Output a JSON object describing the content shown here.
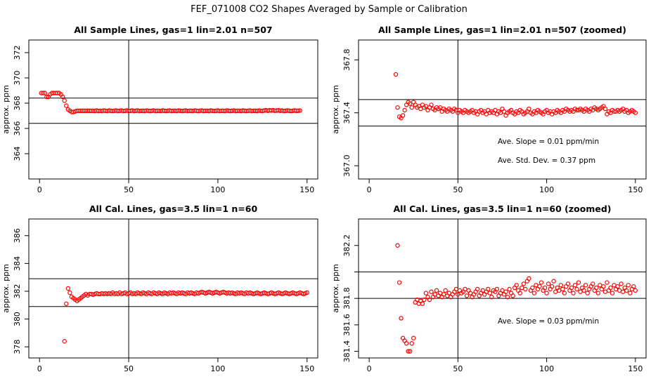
{
  "figure": {
    "title": "FEF_071008  CO2 Shapes Averaged by Sample or Calibration"
  },
  "chart_data": [
    {
      "type": "scatter",
      "title": "All Sample Lines, gas=1 lin=2.01 n=507",
      "xlabel": "",
      "ylabel": "approx. ppm",
      "xlim": [
        -6,
        156
      ],
      "ylim": [
        362,
        373
      ],
      "xticks": [
        0,
        50,
        100,
        150
      ],
      "yticks": [
        364,
        366,
        368,
        370,
        372
      ],
      "marker_color": "#ff0000",
      "vline": 50,
      "hlines": [
        366.4,
        368.4
      ],
      "annotations": [],
      "x_start": 1,
      "x_step": 1,
      "values": [
        368.8,
        368.8,
        368.8,
        368.5,
        368.5,
        368.7,
        368.8,
        368.8,
        368.8,
        368.8,
        368.8,
        368.7,
        368.5,
        368.2,
        367.8,
        367.5,
        367.4,
        367.3,
        367.3,
        367.35,
        367.4,
        367.4,
        367.4,
        367.4,
        367.4,
        367.4,
        367.4,
        367.4,
        367.4,
        367.4,
        367.38,
        367.42,
        367.38,
        367.4,
        367.38,
        367.42,
        367.4,
        367.38,
        367.42,
        367.4,
        367.38,
        367.4,
        367.42,
        367.38,
        367.4,
        367.42,
        367.38,
        367.4,
        367.42,
        367.38,
        367.4,
        367.42,
        367.38,
        367.4,
        367.42,
        367.38,
        367.4,
        367.4,
        367.38,
        367.42,
        367.4,
        367.38,
        367.4,
        367.42,
        367.38,
        367.4,
        367.4,
        367.38,
        367.42,
        367.4,
        367.38,
        367.4,
        367.42,
        367.38,
        367.4,
        367.4,
        367.38,
        367.42,
        367.4,
        367.38,
        367.4,
        367.42,
        367.38,
        367.4,
        367.4,
        367.38,
        367.42,
        367.4,
        367.38,
        367.4,
        367.42,
        367.38,
        367.4,
        367.4,
        367.38,
        367.42,
        367.4,
        367.38,
        367.4,
        367.42,
        367.38,
        367.4,
        367.4,
        367.38,
        367.42,
        367.4,
        367.38,
        367.4,
        367.42,
        367.38,
        367.4,
        367.4,
        367.38,
        367.42,
        367.4,
        367.38,
        367.4,
        367.42,
        367.38,
        367.4,
        367.4,
        367.38,
        367.42,
        367.4,
        367.38,
        367.42,
        367.44,
        367.4,
        367.44,
        367.42,
        367.44,
        367.4,
        367.42,
        367.44,
        367.4,
        367.42,
        367.38,
        367.4,
        367.42,
        367.4,
        367.38,
        367.4,
        367.42,
        367.4,
        367.4,
        367.42
      ]
    },
    {
      "type": "scatter",
      "title": "All Sample Lines, gas=1 lin=2.01 n=507 (zoomed)",
      "xlabel": "",
      "ylabel": "approx. ppm",
      "xlim": [
        -6,
        156
      ],
      "ylim": [
        366.9,
        367.95
      ],
      "xticks": [
        0,
        50,
        100,
        150
      ],
      "yticks": [
        367.0,
        367.4,
        367.8
      ],
      "ytick_labels": [
        "367.0",
        "367.4",
        "367.8"
      ],
      "marker_color": "#ff0000",
      "vline": 50,
      "hlines": [
        367.3,
        367.5
      ],
      "annotations": [
        "Ave. Slope =  0.01  ppm/min",
        "Ave. Std. Dev. =  0.37  ppm"
      ],
      "x_start": 15,
      "x_step": 1,
      "values": [
        367.69,
        367.44,
        367.37,
        367.36,
        367.38,
        367.42,
        367.46,
        367.48,
        367.47,
        367.44,
        367.48,
        367.46,
        367.44,
        367.45,
        367.43,
        367.46,
        367.44,
        367.45,
        367.42,
        367.44,
        367.46,
        367.43,
        367.42,
        367.44,
        367.43,
        367.44,
        367.41,
        367.43,
        367.42,
        367.41,
        367.43,
        367.42,
        367.41,
        367.43,
        367.42,
        367.4,
        367.42,
        367.41,
        367.4,
        367.42,
        367.41,
        367.4,
        367.41,
        367.42,
        367.4,
        367.41,
        367.39,
        367.41,
        367.42,
        367.4,
        367.41,
        367.39,
        367.42,
        367.4,
        367.41,
        367.4,
        367.42,
        367.39,
        367.41,
        367.4,
        367.43,
        367.41,
        367.38,
        367.4,
        367.41,
        367.42,
        367.4,
        367.39,
        367.41,
        367.4,
        367.42,
        367.41,
        367.39,
        367.4,
        367.41,
        367.43,
        367.4,
        367.39,
        367.41,
        367.4,
        367.42,
        367.41,
        367.4,
        367.39,
        367.41,
        367.42,
        367.4,
        367.41,
        367.39,
        367.41,
        367.4,
        367.42,
        367.41,
        367.4,
        367.42,
        367.41,
        367.43,
        367.42,
        367.41,
        367.42,
        367.41,
        367.43,
        367.42,
        367.42,
        367.43,
        367.42,
        367.41,
        367.43,
        367.42,
        367.41,
        367.43,
        367.42,
        367.44,
        367.43,
        367.42,
        367.43,
        367.44,
        367.45,
        367.43,
        367.39,
        367.41,
        367.4,
        367.42,
        367.41,
        367.41,
        367.42,
        367.41,
        367.42,
        367.43,
        367.41,
        367.42,
        367.4,
        367.41,
        367.42,
        367.41,
        367.4
      ]
    },
    {
      "type": "scatter",
      "title": "All Cal. Lines, gas=3.5 lin=1 n=60",
      "xlabel": "",
      "ylabel": "approx. ppm",
      "xlim": [
        -6,
        156
      ],
      "ylim": [
        377.2,
        387.2
      ],
      "xticks": [
        0,
        50,
        100,
        150
      ],
      "yticks": [
        378,
        380,
        382,
        384,
        386
      ],
      "marker_color": "#ff0000",
      "vline": 50,
      "hlines": [
        380.9,
        382.9
      ],
      "annotations": [],
      "x_start": 14,
      "x_step": 1,
      "values": [
        378.4,
        381.1,
        382.2,
        381.9,
        381.6,
        381.5,
        381.4,
        381.3,
        381.4,
        381.5,
        381.6,
        381.7,
        381.8,
        381.7,
        381.8,
        381.8,
        381.75,
        381.8,
        381.85,
        381.8,
        381.8,
        381.85,
        381.8,
        381.85,
        381.8,
        381.85,
        381.8,
        381.9,
        381.8,
        381.85,
        381.8,
        381.9,
        381.8,
        381.85,
        381.9,
        381.8,
        381.85,
        381.9,
        381.8,
        381.85,
        381.8,
        381.9,
        381.85,
        381.8,
        381.9,
        381.85,
        381.8,
        381.9,
        381.85,
        381.8,
        381.9,
        381.85,
        381.8,
        381.9,
        381.85,
        381.8,
        381.9,
        381.85,
        381.8,
        381.9,
        381.85,
        381.9,
        381.85,
        381.8,
        381.9,
        381.85,
        381.9,
        381.85,
        381.8,
        381.9,
        381.85,
        381.9,
        381.85,
        381.8,
        381.9,
        381.85,
        381.9,
        381.95,
        381.9,
        381.85,
        381.9,
        381.95,
        381.9,
        381.85,
        381.9,
        381.95,
        381.9,
        381.85,
        381.9,
        381.95,
        381.9,
        381.85,
        381.9,
        381.85,
        381.9,
        381.85,
        381.8,
        381.9,
        381.85,
        381.9,
        381.85,
        381.8,
        381.9,
        381.85,
        381.9,
        381.85,
        381.8,
        381.85,
        381.9,
        381.85,
        381.8,
        381.85,
        381.9,
        381.85,
        381.8,
        381.85,
        381.9,
        381.85,
        381.8,
        381.85,
        381.9,
        381.85,
        381.8,
        381.85,
        381.9,
        381.85,
        381.8,
        381.85,
        381.9,
        381.85,
        381.8,
        381.85,
        381.9,
        381.85,
        381.8,
        381.85,
        381.9
      ]
    },
    {
      "type": "scatter",
      "title": "All Cal. Lines, gas=3.5 lin=1 n=60 (zoomed)",
      "xlabel": "",
      "ylabel": "approx. ppm",
      "xlim": [
        -6,
        156
      ],
      "ylim": [
        381.35,
        382.4
      ],
      "xticks": [
        0,
        50,
        100,
        150
      ],
      "yticks": [
        381.4,
        381.6,
        381.8,
        382.0,
        382.2
      ],
      "ytick_labels": [
        "381.4",
        "381.6",
        "381.8",
        "",
        "382.2"
      ],
      "marker_color": "#ff0000",
      "vline": 50,
      "hlines": [
        381.8,
        382.0
      ],
      "annotations": [
        "Ave. Slope =  0.03  ppm/min"
      ],
      "x_start": 16,
      "x_step": 1,
      "values": [
        382.2,
        381.92,
        381.65,
        381.5,
        381.48,
        381.46,
        381.4,
        381.4,
        381.46,
        381.5,
        381.77,
        381.79,
        381.76,
        381.78,
        381.76,
        381.79,
        381.84,
        381.81,
        381.79,
        381.85,
        381.81,
        381.83,
        381.86,
        381.82,
        381.84,
        381.81,
        381.83,
        381.86,
        381.82,
        381.84,
        381.81,
        381.83,
        381.85,
        381.87,
        381.83,
        381.86,
        381.84,
        381.85,
        381.87,
        381.82,
        381.86,
        381.84,
        381.81,
        381.83,
        381.85,
        381.87,
        381.82,
        381.84,
        381.86,
        381.83,
        381.85,
        381.87,
        381.84,
        381.81,
        381.86,
        381.85,
        381.87,
        381.82,
        381.84,
        381.86,
        381.83,
        381.85,
        381.81,
        381.87,
        381.84,
        381.82,
        381.88,
        381.9,
        381.86,
        381.84,
        381.88,
        381.91,
        381.87,
        381.93,
        381.95,
        381.86,
        381.88,
        381.84,
        381.9,
        381.87,
        381.89,
        381.92,
        381.86,
        381.88,
        381.84,
        381.91,
        381.87,
        381.89,
        381.93,
        381.85,
        381.88,
        381.86,
        381.9,
        381.87,
        381.84,
        381.89,
        381.91,
        381.86,
        381.88,
        381.84,
        381.9,
        381.87,
        381.92,
        381.85,
        381.88,
        381.86,
        381.9,
        381.84,
        381.87,
        381.89,
        381.91,
        381.86,
        381.88,
        381.84,
        381.9,
        381.87,
        381.89,
        381.85,
        381.92,
        381.86,
        381.88,
        381.84,
        381.9,
        381.87,
        381.89,
        381.86,
        381.91,
        381.85,
        381.88,
        381.86,
        381.9,
        381.84,
        381.87,
        381.89,
        381.86
      ]
    }
  ]
}
